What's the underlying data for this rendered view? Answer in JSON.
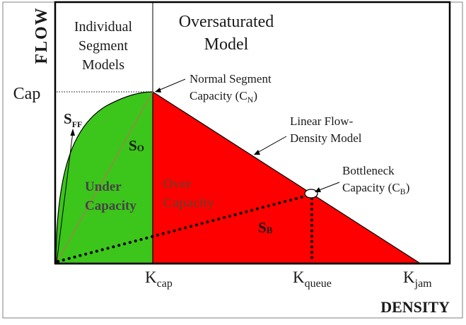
{
  "colors": {
    "under_fill": "#3cc51b",
    "over_fill": "#ff0000",
    "line": "#000000",
    "diag": "#b07a50"
  },
  "axes": {
    "y_title": "FLOW",
    "x_title": "DENSITY",
    "cap_label": "Cap",
    "k_cap": {
      "main": "K",
      "sub": "cap"
    },
    "k_queue": {
      "main": "K",
      "sub": "queue"
    },
    "k_jam": {
      "main": "K",
      "sub": "jam"
    }
  },
  "headers": {
    "individual": [
      "Individual",
      "Segment",
      "Models"
    ],
    "oversaturated": [
      "Oversaturated",
      "Model"
    ]
  },
  "annotations": {
    "normal_capacity": {
      "line1": "Normal Segment",
      "line2_pre": "Capacity (C",
      "line2_sub": "N",
      "line2_post": ")"
    },
    "linear_model": [
      "Linear Flow-",
      "Density Model"
    ],
    "bottleneck": {
      "line1": "Bottleneck",
      "line2_pre": "Capacity (C",
      "line2_sub": "B",
      "line2_post": ")"
    }
  },
  "regions": {
    "under": [
      "Under",
      "Capacity"
    ],
    "over": [
      "Over",
      "Capacity"
    ]
  },
  "slopes": {
    "s_ff": {
      "main": "S",
      "sub": "FF"
    },
    "s_o": {
      "main": "S",
      "sub": "O"
    },
    "s_b": {
      "main": "S",
      "sub": "B"
    }
  }
}
